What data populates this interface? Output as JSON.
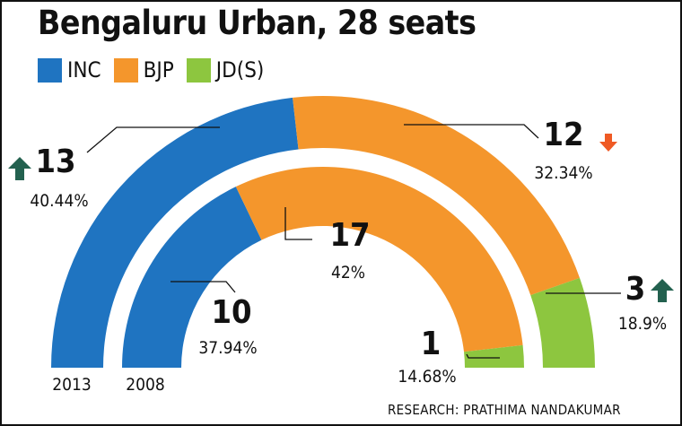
{
  "title": "Bengaluru Urban, 28 seats",
  "source": "RESEARCH: PRATHIMA NANDAKUMAR",
  "colors": {
    "INC": "#1f74c1",
    "BJP": "#f4962c",
    "JD(S)": "#8dc63f",
    "up": "#23614f",
    "down": "#ef5a24",
    "line": "#111111"
  },
  "chart_data": {
    "type": "semicircle-parliament",
    "title": "Bengaluru Urban, 28 seats",
    "total_seats": 28,
    "legend": [
      "INC",
      "BJP",
      "JD(S)"
    ],
    "legend_placement": "top-left",
    "rings": [
      {
        "year": "2013",
        "position": "outer",
        "parties": [
          {
            "party": "INC",
            "seats": 13,
            "seats_label": "13",
            "vote_share": "40.44%",
            "trend": "up"
          },
          {
            "party": "BJP",
            "seats": 12,
            "seats_label": "12",
            "vote_share": "32.34%",
            "trend": "down"
          },
          {
            "party": "JD(S)",
            "seats": 3,
            "seats_label": "3",
            "vote_share": "18.9%",
            "trend": "up"
          }
        ]
      },
      {
        "year": "2008",
        "position": "inner",
        "parties": [
          {
            "party": "INC",
            "seats": 10,
            "seats_label": "10",
            "vote_share": "37.94%",
            "trend": ""
          },
          {
            "party": "BJP",
            "seats": 17,
            "seats_label": "17",
            "vote_share": "42%",
            "trend": ""
          },
          {
            "party": "JD(S)",
            "seats": 1,
            "seats_label": "1",
            "vote_share": "14.68%",
            "trend": ""
          }
        ]
      }
    ]
  }
}
